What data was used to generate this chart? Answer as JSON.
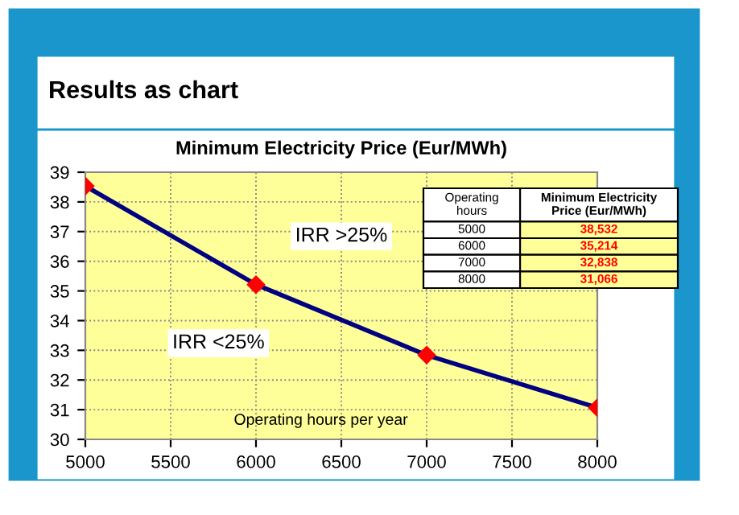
{
  "chart_data": {
    "type": "line",
    "title": "Minimum Electricity Price (Eur/MWh)",
    "x": [
      5000,
      6000,
      7000,
      8000
    ],
    "series": [
      {
        "color": "#000080",
        "values": [
          38.532,
          35.214,
          32.838,
          31.066
        ]
      }
    ],
    "xlim": [
      5000,
      8000
    ],
    "xticks": [
      5000,
      5500,
      6000,
      6500,
      7000,
      7500,
      8000
    ],
    "ylim": [
      30,
      39
    ],
    "yticks": [
      30,
      31,
      32,
      33,
      34,
      35,
      36,
      37,
      38,
      39
    ],
    "grid": true,
    "marker": "diamond",
    "line_style": "solid",
    "annotations": [
      "Results as chart",
      "IRR >25%",
      "IRR <25%",
      "Operating hours per year",
      "Operating hours",
      "Minimum Electricity Price (Eur/MWh)",
      "5000",
      "6000",
      "7000",
      "8000",
      "38,532",
      "35,214",
      "32,838",
      "31,066"
    ]
  }
}
